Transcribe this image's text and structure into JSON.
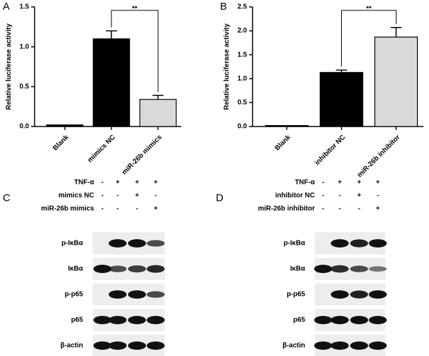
{
  "chart_data": [
    {
      "type": "bar",
      "panel": "A",
      "ylabel": "Relative luciferase activity",
      "categories": [
        "Blank",
        "mimics NC",
        "miR-26b mimics"
      ],
      "values": [
        0.02,
        1.1,
        0.34
      ],
      "errors": [
        null,
        0.1,
        0.05
      ],
      "colors": [
        "#000000",
        "#000000",
        "#d9d9d9"
      ],
      "ylim": [
        0,
        1.5
      ],
      "yticks": [
        {
          "value": 0,
          "label": "0.0"
        },
        {
          "value": 0.5,
          "label": "0.5"
        },
        {
          "value": 1,
          "label": "1.0"
        },
        {
          "value": 1.5,
          "label": "1.5"
        }
      ],
      "significance": "**"
    },
    {
      "type": "bar",
      "panel": "B",
      "ylabel": "Relative luciferase activity",
      "categories": [
        "Blank",
        "inhibitor NC",
        "miR-26b inhibitor"
      ],
      "values": [
        0.02,
        1.13,
        1.87
      ],
      "errors": [
        null,
        0.05,
        0.2
      ],
      "colors": [
        "#000000",
        "#000000",
        "#d9d9d9"
      ],
      "ylim": [
        0,
        2.5
      ],
      "yticks": [
        {
          "value": 0,
          "label": "0.0"
        },
        {
          "value": 0.5,
          "label": "0.5"
        },
        {
          "value": 1,
          "label": "1.0"
        },
        {
          "value": 1.5,
          "label": "1.5"
        },
        {
          "value": 2,
          "label": "2.0"
        },
        {
          "value": 2.5,
          "label": "2.5"
        }
      ],
      "significance": "**"
    }
  ],
  "blots": [
    {
      "panel": "C",
      "conditions": [
        {
          "label": "TNF-α",
          "signs": [
            "-",
            "+",
            "+",
            "+"
          ]
        },
        {
          "label": "mimics NC",
          "signs": [
            "-",
            "-",
            "+",
            "-"
          ]
        },
        {
          "label": "miR-26b mimics",
          "signs": [
            "-",
            "-",
            "-",
            "+"
          ]
        }
      ],
      "bands": [
        "p-IκBα",
        "IκBα",
        "p-p65",
        "p65",
        "β-actin"
      ]
    },
    {
      "panel": "D",
      "conditions": [
        {
          "label": "TNF-α",
          "signs": [
            "-",
            "+",
            "+",
            "+"
          ]
        },
        {
          "label": "inhibitor NC",
          "signs": [
            "-",
            "-",
            "+",
            "-"
          ]
        },
        {
          "label": "miR-26b inhibitor",
          "signs": [
            "-",
            "-",
            "-",
            "+"
          ]
        }
      ],
      "bands": [
        "p-IκBα",
        "IκBα",
        "p-p65",
        "p65",
        "β-actin"
      ]
    }
  ]
}
